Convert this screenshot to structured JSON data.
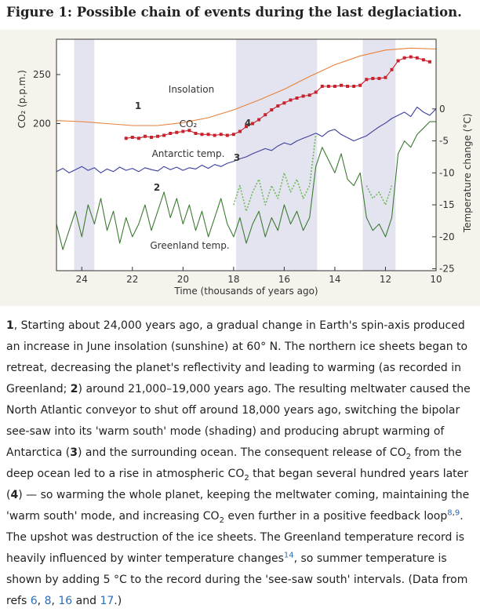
{
  "title": "Figure 1: Possible chain of events during the last deglaciation.",
  "chart_data": {
    "type": "line",
    "xlabel": "Time (thousands of years ago)",
    "ylabel": "CO₂ (p.p.m.)",
    "y2label": "Temperature change (°C)",
    "xlim": [
      25,
      10
    ],
    "xticks": [
      24,
      22,
      20,
      18,
      16,
      14,
      12,
      10
    ],
    "ylim": [
      50,
      286
    ],
    "yticks": [
      200,
      250
    ],
    "y2lim": [
      -25.3,
      10.9
    ],
    "y2ticks": [
      0,
      -5,
      -10,
      -15,
      -20,
      -25
    ],
    "shading": [
      [
        24.3,
        23.5
      ],
      [
        17.9,
        14.7
      ],
      [
        12.9,
        11.6
      ]
    ],
    "annotations": [
      "1",
      "2",
      "3",
      "4"
    ],
    "series": [
      {
        "name": "Insolation",
        "color": "#e8823a",
        "style": "line",
        "x": [
          25,
          24,
          23,
          22,
          21,
          20,
          19,
          18,
          17,
          16,
          15,
          14,
          13,
          12,
          11,
          10
        ],
        "values": [
          203,
          202,
          200,
          198,
          198,
          201,
          206,
          214,
          224,
          235,
          248,
          260,
          269,
          275,
          277,
          276
        ]
      },
      {
        "name": "CO₂",
        "color": "#c8232c",
        "style": "markers",
        "x": [
          22.25,
          22,
          21.75,
          21.5,
          21.25,
          21,
          20.75,
          20.5,
          20.25,
          20,
          19.75,
          19.5,
          19.25,
          19,
          18.75,
          18.5,
          18.25,
          18,
          17.75,
          17.5,
          17.25,
          17,
          16.75,
          16.5,
          16.25,
          16,
          15.75,
          15.5,
          15.25,
          15,
          14.75,
          14.5,
          14.25,
          14,
          13.75,
          13.5,
          13.25,
          13,
          12.75,
          12.5,
          12.25,
          12,
          11.75,
          11.5,
          11.25,
          11,
          10.75,
          10.5,
          10.25
        ],
        "values": [
          185,
          186,
          185,
          187,
          186,
          187,
          188,
          190,
          191,
          192,
          193,
          190,
          189,
          189,
          188,
          189,
          188,
          189,
          192,
          197,
          200,
          204,
          209,
          214,
          218,
          221,
          224,
          226,
          228,
          229,
          232,
          238,
          238,
          238,
          239,
          238,
          238,
          239,
          245,
          246,
          246,
          247,
          255,
          264,
          267,
          268,
          267,
          265,
          263
        ]
      },
      {
        "name": "Antarctic temp.",
        "color": "#3b3f9e",
        "style": "line",
        "axis": "y2",
        "x": [
          25,
          24.75,
          24.5,
          24.25,
          24,
          23.75,
          23.5,
          23.25,
          23,
          22.75,
          22.5,
          22.25,
          22,
          21.75,
          21.5,
          21.25,
          21,
          20.75,
          20.5,
          20.25,
          20,
          19.75,
          19.5,
          19.25,
          19,
          18.75,
          18.5,
          18.25,
          18,
          17.75,
          17.5,
          17.25,
          17,
          16.75,
          16.5,
          16.25,
          16,
          15.75,
          15.5,
          15.25,
          15,
          14.75,
          14.5,
          14.25,
          14,
          13.75,
          13.5,
          13.25,
          13,
          12.75,
          12.5,
          12.25,
          12,
          11.75,
          11.5,
          11.25,
          11,
          10.75,
          10.5,
          10.25,
          10
        ],
        "values": [
          -9.8,
          -9.3,
          -10,
          -9.5,
          -9,
          -9.6,
          -9.2,
          -10,
          -9.4,
          -9.8,
          -9.1,
          -9.6,
          -9.3,
          -9.8,
          -9.2,
          -9.5,
          -9.7,
          -9,
          -9.5,
          -9.1,
          -9.6,
          -9.2,
          -9.4,
          -8.8,
          -9.3,
          -8.7,
          -9,
          -8.5,
          -8.2,
          -7.8,
          -7.5,
          -7,
          -6.6,
          -6.2,
          -6.5,
          -5.8,
          -5.3,
          -5.6,
          -5,
          -4.6,
          -4.2,
          -3.8,
          -4.3,
          -3.5,
          -3.2,
          -4,
          -4.5,
          -5,
          -4.6,
          -4.2,
          -3.5,
          -2.8,
          -2.2,
          -1.5,
          -1,
          -0.5,
          -1.2,
          0.3,
          -0.5,
          -1,
          0
        ]
      },
      {
        "name": "Greenland temp.",
        "color": "#3d7a32",
        "style": "line",
        "axis": "y2",
        "x": [
          25,
          24.75,
          24.5,
          24.25,
          24,
          23.75,
          23.5,
          23.25,
          23,
          22.75,
          22.5,
          22.25,
          22,
          21.75,
          21.5,
          21.25,
          21,
          20.75,
          20.5,
          20.25,
          20,
          19.75,
          19.5,
          19.25,
          19,
          18.75,
          18.5,
          18.25,
          18,
          17.75,
          17.5,
          17.25,
          17,
          16.75,
          16.5,
          16.25,
          16,
          15.75,
          15.5,
          15.25,
          15,
          14.75,
          14.5,
          14.25,
          14,
          13.75,
          13.5,
          13.25,
          13,
          12.75,
          12.5,
          12.25,
          12,
          11.75,
          11.5,
          11.25,
          11,
          10.75,
          10.5,
          10.25,
          10
        ],
        "values": [
          -18,
          -22,
          -19,
          -16,
          -20,
          -15,
          -18,
          -14,
          -19,
          -16,
          -21,
          -17,
          -20,
          -18,
          -15,
          -19,
          -16,
          -13,
          -17,
          -14,
          -18,
          -15,
          -19,
          -16,
          -20,
          -17,
          -14,
          -18,
          -20,
          -17,
          -21,
          -18,
          -16,
          -20,
          -17,
          -19,
          -15,
          -18,
          -16,
          -19,
          -17,
          -9,
          -6,
          -8,
          -10,
          -7,
          -11,
          -12,
          -10,
          -17,
          -19,
          -18,
          -20,
          -17,
          -7,
          -5,
          -6,
          -4,
          -3,
          -2,
          -2
        ]
      },
      {
        "color": "#72b85c",
        "style": "dotted",
        "axis": "y2",
        "x": [
          18,
          17.75,
          17.5,
          17.25,
          17,
          16.75,
          16.5,
          16.25,
          16,
          15.75,
          15.5,
          15.25,
          15,
          14.75,
          14.5,
          13,
          12.75,
          12.5,
          12.25,
          12,
          11.75
        ],
        "values": [
          -15,
          -12,
          -16,
          -13,
          -11,
          -15,
          -12,
          -14,
          -10,
          -13,
          -11,
          -14,
          -12,
          -4,
          null,
          null,
          -12,
          -14,
          -13,
          -15,
          -12
        ]
      }
    ]
  },
  "caption": [
    {
      "text": "1",
      "style": "bold"
    },
    {
      "text": ", Starting about 24,000 years ago, a gradual change in Earth's spin-axis produced an increase in June insolation (sunshine) at 60° N. The northern ice sheets began to retreat, decreasing the planet's reflectivity and leading to warming (as recorded in Greenland; "
    },
    {
      "text": "2",
      "style": "bold"
    },
    {
      "text": ") around 21,000–19,000 years ago. The resulting meltwater caused the North Atlantic conveyor to shut off around 18,000 years ago, switching the bipolar see-saw into its 'warm south' mode (shading) and producing abrupt warming of Antarctica ("
    },
    {
      "text": "3",
      "style": "bold"
    },
    {
      "text": ") and the surrounding ocean. The consequent release of CO"
    },
    {
      "text": "2",
      "style": "sub"
    },
    {
      "text": " from the deep ocean led to a rise in atmospheric CO"
    },
    {
      "text": "2",
      "style": "sub"
    },
    {
      "text": " that began several hundred years later ("
    },
    {
      "text": "4",
      "style": "bold"
    },
    {
      "text": ") — so warming the whole planet, keeping the meltwater coming, maintaining the 'warm south' mode, and increasing CO"
    },
    {
      "text": "2",
      "style": "sub"
    },
    {
      "text": " even further in a positive feedback loop"
    },
    {
      "text": "8",
      "style": "sup link"
    },
    {
      "text": ",",
      "style": "sup"
    },
    {
      "text": "9",
      "style": "sup link"
    },
    {
      "text": ". The upshot was destruction of the ice sheets. The Greenland temperature record is heavily influenced by winter temperature changes"
    },
    {
      "text": "14",
      "style": "sup link"
    },
    {
      "text": ", so summer temperature is shown by adding 5 °C to the record during the 'see-saw south' intervals. (Data from refs "
    },
    {
      "text": "6",
      "style": "link"
    },
    {
      "text": ", "
    },
    {
      "text": "8",
      "style": "link"
    },
    {
      "text": ", "
    },
    {
      "text": "16",
      "style": "link"
    },
    {
      "text": " and "
    },
    {
      "text": "17",
      "style": "link"
    },
    {
      "text": ".)"
    }
  ]
}
